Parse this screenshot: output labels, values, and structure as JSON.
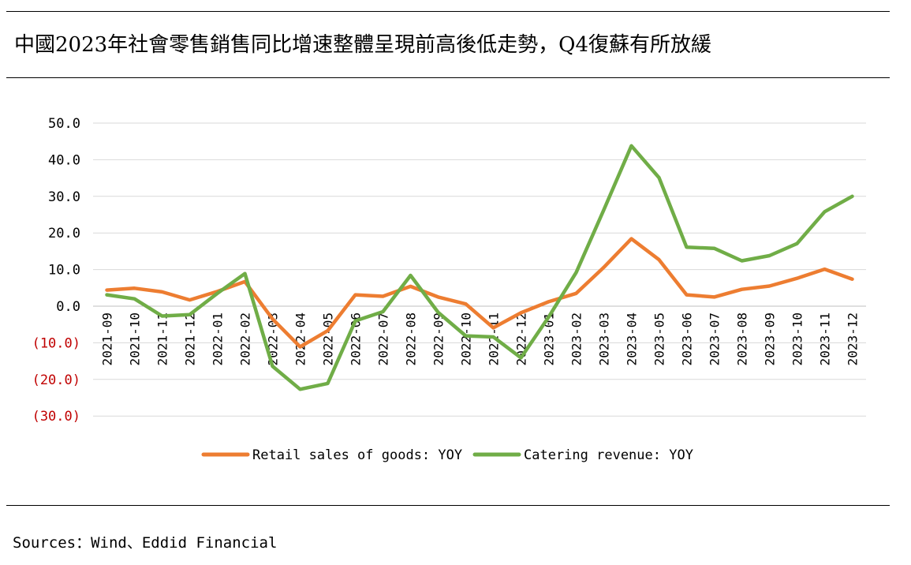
{
  "page": {
    "title": "中國2023年社會零售銷售同比增速整體呈現前高後低走勢，Q4復蘇有所放緩",
    "source": "Sources：Wind、Eddid Financial"
  },
  "chart_data": {
    "type": "line",
    "categories": [
      "2021-09",
      "2021-10",
      "2021-11",
      "2021-12",
      "2022-01",
      "2022-02",
      "2022-03",
      "2022-04",
      "2022-05",
      "2022-06",
      "2022-07",
      "2022-08",
      "2022-09",
      "2022-10",
      "2022-11",
      "2022-12",
      "2023-01",
      "2023-02",
      "2023-03",
      "2023-04",
      "2023-05",
      "2023-06",
      "2023-07",
      "2023-08",
      "2023-09",
      "2023-10",
      "2023-11",
      "2023-12"
    ],
    "series": [
      {
        "name": "Retail sales of goods: YOY",
        "color": "#ed7d31",
        "values": [
          4.4,
          4.9,
          3.9,
          1.7,
          4.0,
          6.7,
          -3.5,
          -11.1,
          -6.7,
          3.1,
          2.7,
          5.4,
          2.5,
          0.6,
          -5.9,
          -1.8,
          1.2,
          3.5,
          10.6,
          18.4,
          12.7,
          3.1,
          2.5,
          4.6,
          5.5,
          7.6,
          10.1,
          7.4
        ]
      },
      {
        "name": "Catering revenue: YOY",
        "color": "#70ad47",
        "values": [
          3.1,
          2.0,
          -2.7,
          -2.3,
          3.5,
          8.9,
          -16.4,
          -22.7,
          -21.1,
          -4.0,
          -1.5,
          8.4,
          -1.7,
          -8.1,
          -8.4,
          -14.1,
          -3.0,
          9.2,
          26.3,
          43.8,
          35.1,
          16.1,
          15.8,
          12.4,
          13.8,
          17.1,
          25.8,
          30.0
        ]
      }
    ],
    "y_ticks": [
      "50.0",
      "40.0",
      "30.0",
      "20.0",
      "10.0",
      "0.0",
      "(10.0)",
      "(20.0)",
      "(30.0)"
    ],
    "y_tick_values": [
      50,
      40,
      30,
      20,
      10,
      0,
      -10,
      -20,
      -30
    ],
    "negative_tick_color": "#c00000",
    "ylim": [
      -30,
      50
    ],
    "grid": true,
    "legend_position": "bottom"
  }
}
